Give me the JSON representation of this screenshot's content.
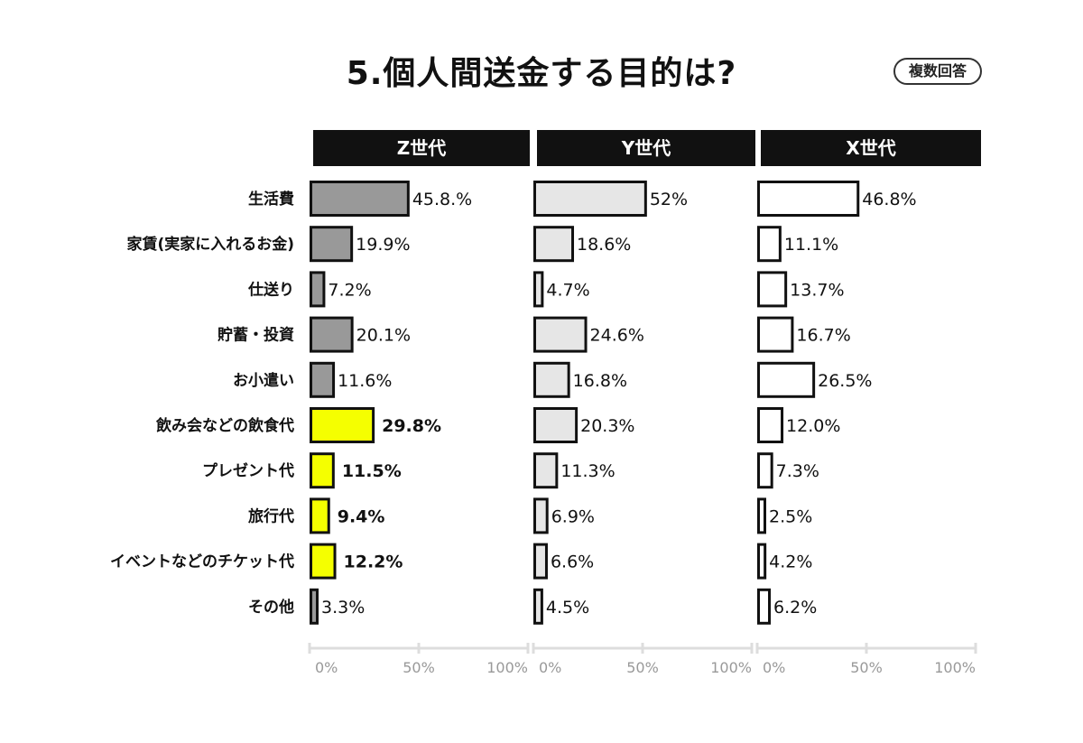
{
  "title": "5.個人間送金する目的は?",
  "badge": "複数回答",
  "colors": {
    "z_bar": "#999999",
    "z_highlight": "#f5ff00",
    "y_bar": "#e6e6e6",
    "x_bar": "#ffffff",
    "outline": "#111111",
    "axis": "#dddddd"
  },
  "chart_data": {
    "type": "bar",
    "orientation": "horizontal",
    "title": "5.個人間送金する目的は?",
    "categories": [
      "生活費",
      "家賃(実家に入れるお金)",
      "仕送り",
      "貯蓄・投資",
      "お小遣い",
      "飲み会などの飲食代",
      "プレゼント代",
      "旅行代",
      "イベントなどのチケット代",
      "その他"
    ],
    "xlim": [
      0,
      100
    ],
    "ticks": [
      "0%",
      "50%",
      "100%"
    ],
    "grid": false,
    "series": [
      {
        "name": "Z世代",
        "values": [
          45.8,
          19.9,
          7.2,
          20.1,
          11.6,
          29.8,
          11.5,
          9.4,
          12.2,
          3.3
        ],
        "labels": [
          "45.8.%",
          "19.9%",
          "7.2%",
          "20.1%",
          "11.6%",
          "29.8%",
          "11.5%",
          "9.4%",
          "12.2%",
          "3.3%"
        ],
        "highlighted": [
          "飲み会などの飲食代",
          "プレゼント代",
          "旅行代",
          "イベントなどのチケット代"
        ]
      },
      {
        "name": "Y世代",
        "values": [
          52,
          18.6,
          4.7,
          24.6,
          16.8,
          20.3,
          11.3,
          6.9,
          6.6,
          4.5
        ],
        "labels": [
          "52%",
          "18.6%",
          "4.7%",
          "24.6%",
          "16.8%",
          "20.3%",
          "11.3%",
          "6.9%",
          "6.6%",
          "4.5%"
        ],
        "highlighted": []
      },
      {
        "name": "X世代",
        "values": [
          46.8,
          11.1,
          13.7,
          16.7,
          26.5,
          12.0,
          7.3,
          2.5,
          4.2,
          6.2
        ],
        "labels": [
          "46.8%",
          "11.1%",
          "13.7%",
          "16.7%",
          "26.5%",
          "12.0%",
          "7.3%",
          "2.5%",
          "4.2%",
          "6.2%"
        ],
        "highlighted": []
      }
    ]
  }
}
